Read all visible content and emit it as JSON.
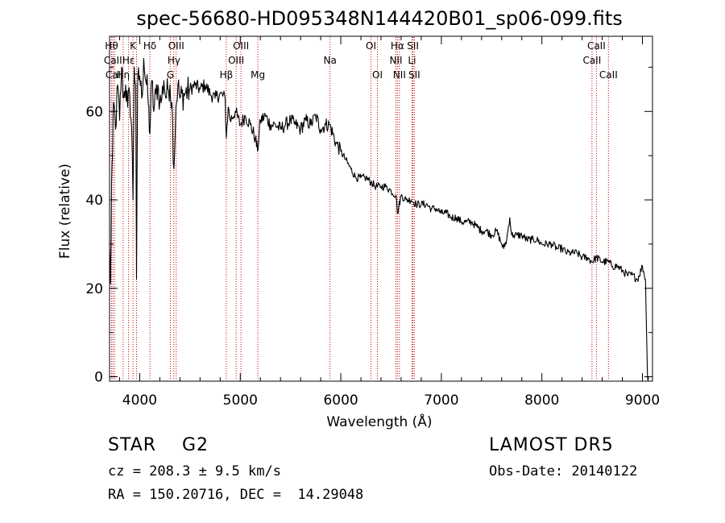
{
  "chart_data": {
    "type": "line",
    "title": "spec-56680-HD095348N144420B01_sp06-099.fits",
    "xlabel": "Wavelength (Å)",
    "ylabel": "Flux (relative)",
    "xlim": [
      3700,
      9100
    ],
    "ylim": [
      -1,
      77
    ],
    "xticks": [
      4000,
      5000,
      6000,
      7000,
      8000,
      9000
    ],
    "yticks": [
      0,
      20,
      40,
      60
    ],
    "grid": false,
    "line_color": "#000000",
    "marker_color": "#cc0000",
    "series": [
      {
        "x": [
          3700,
          3710,
          3720,
          3730,
          3740,
          3760,
          3780,
          3800,
          3820,
          3840,
          3860,
          3880,
          3900,
          3920,
          3933,
          3945,
          3960,
          3968,
          3980,
          4000,
          4020,
          4040,
          4060,
          4080,
          4101,
          4120,
          4140,
          4160,
          4180,
          4200,
          4220,
          4240,
          4260,
          4280,
          4300,
          4320,
          4340,
          4360,
          4380,
          4400,
          4450,
          4500,
          4550,
          4600,
          4650,
          4700,
          4750,
          4800,
          4850,
          4861,
          4880,
          4900,
          4950,
          5000,
          5050,
          5100,
          5150,
          5172,
          5200,
          5250,
          5300,
          5350,
          5400,
          5450,
          5500,
          5550,
          5600,
          5650,
          5700,
          5750,
          5800,
          5850,
          5890,
          5950,
          6000,
          6050,
          6100,
          6150,
          6200,
          6250,
          6300,
          6350,
          6400,
          6450,
          6500,
          6550,
          6563,
          6600,
          6650,
          6700,
          6750,
          6800,
          6850,
          6900,
          6950,
          7000,
          7050,
          7100,
          7150,
          7200,
          7250,
          7300,
          7350,
          7400,
          7450,
          7500,
          7550,
          7600,
          7620,
          7650,
          7680,
          7700,
          7720,
          7750,
          7800,
          7850,
          7900,
          7950,
          8000,
          8050,
          8100,
          8150,
          8200,
          8250,
          8300,
          8350,
          8400,
          8450,
          8498,
          8542,
          8600,
          8662,
          8700,
          8750,
          8800,
          8850,
          8900,
          8950,
          9000,
          9030,
          9050,
          9060
        ],
        "y": [
          29,
          21,
          44,
          50,
          62,
          56,
          66,
          58,
          70,
          63,
          66,
          61,
          64,
          56,
          40,
          70,
          66,
          22,
          67,
          68,
          63,
          72,
          67,
          64,
          55,
          67,
          60,
          64,
          66,
          62,
          63,
          67,
          63,
          65,
          66,
          62,
          47,
          61,
          66,
          63,
          64,
          65,
          66,
          65,
          66,
          64,
          63,
          64,
          63,
          54,
          61,
          58,
          60,
          57,
          59,
          57,
          54,
          51,
          58,
          59,
          57,
          57,
          56,
          57,
          58,
          57,
          56,
          58,
          57,
          59,
          56,
          57,
          57,
          53,
          51,
          49,
          47,
          45,
          45,
          45,
          44,
          43,
          43,
          43,
          42,
          41,
          37,
          41,
          40,
          40,
          39,
          39,
          39,
          38,
          38,
          37,
          37,
          36,
          36,
          35,
          35,
          35,
          34,
          33,
          33,
          32,
          33,
          30,
          29,
          31,
          36,
          32,
          32,
          32,
          32,
          31,
          31,
          31,
          30,
          30,
          30,
          29,
          29,
          28,
          28,
          28,
          27,
          27,
          26,
          27,
          26,
          26,
          25,
          25,
          24,
          23,
          23,
          22,
          25,
          22,
          0,
          0
        ]
      }
    ],
    "line_markers": [
      {
        "label": "Hθ",
        "x": 3720,
        "row": 0
      },
      {
        "label": "CaII",
        "x": 3734,
        "row": 1
      },
      {
        "label": "CaII",
        "x": 3750,
        "row": 2
      },
      {
        "label": "Hη",
        "x": 3835,
        "row": 2
      },
      {
        "label": "Hε",
        "x": 3889,
        "row": 1
      },
      {
        "label": "K",
        "x": 3933,
        "row": 0
      },
      {
        "label": "H",
        "x": 3968,
        "row": 2
      },
      {
        "label": "Hδ",
        "x": 4101,
        "row": 0
      },
      {
        "label": "OIII",
        "x": 4363,
        "row": 0
      },
      {
        "label": "Hγ",
        "x": 4340,
        "row": 1
      },
      {
        "label": "G",
        "x": 4305,
        "row": 2
      },
      {
        "label": "Hβ",
        "x": 4861,
        "row": 2
      },
      {
        "label": "OIII",
        "x": 4959,
        "row": 1
      },
      {
        "label": "OIII",
        "x": 5007,
        "row": 0
      },
      {
        "label": "Mg",
        "x": 5175,
        "row": 2
      },
      {
        "label": "Na",
        "x": 5893,
        "row": 1
      },
      {
        "label": "OI",
        "x": 6300,
        "row": 0
      },
      {
        "label": "OI",
        "x": 6364,
        "row": 2
      },
      {
        "label": "NII",
        "x": 6548,
        "row": 1
      },
      {
        "label": "Hα",
        "x": 6563,
        "row": 0
      },
      {
        "label": "NII",
        "x": 6583,
        "row": 2
      },
      {
        "label": "Li",
        "x": 6708,
        "row": 1
      },
      {
        "label": "SII",
        "x": 6717,
        "row": 0
      },
      {
        "label": "SII",
        "x": 6731,
        "row": 2
      },
      {
        "label": "CaII",
        "x": 8498,
        "row": 1
      },
      {
        "label": "CaII",
        "x": 8542,
        "row": 0
      },
      {
        "label": "CaII",
        "x": 8662,
        "row": 2
      }
    ]
  },
  "info": {
    "class": "STAR    G2",
    "survey": "LAMOST DR5",
    "cz": "cz = 208.3 ± 9.5 km/s",
    "obs_date": "Obs-Date: 20140122",
    "radec": "RA = 150.20716, DEC =  14.29048"
  }
}
